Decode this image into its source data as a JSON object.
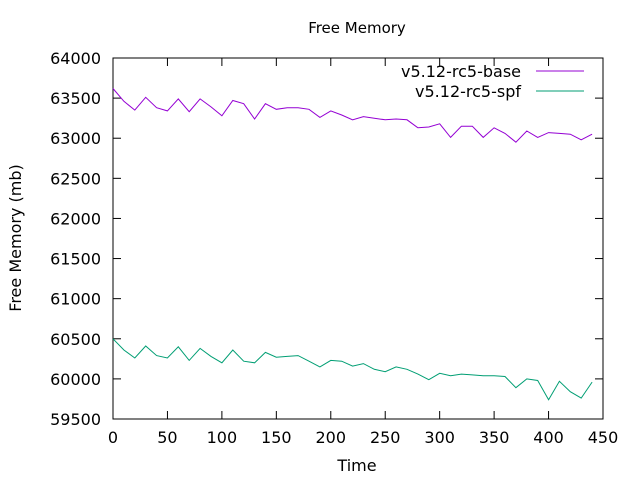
{
  "chart_data": {
    "type": "line",
    "title": "Free Memory",
    "xlabel": "Time",
    "ylabel": "Free Memory (mb)",
    "xlim": [
      0,
      450
    ],
    "ylim": [
      59500,
      64000
    ],
    "xticks": [
      0,
      50,
      100,
      150,
      200,
      250,
      300,
      350,
      400,
      450
    ],
    "yticks": [
      59500,
      60000,
      60500,
      61000,
      61500,
      62000,
      62500,
      63000,
      63500,
      64000
    ],
    "grid": false,
    "legend_position": "top-right",
    "x": [
      0,
      10,
      20,
      30,
      40,
      50,
      60,
      70,
      80,
      90,
      100,
      110,
      120,
      130,
      140,
      150,
      160,
      170,
      180,
      190,
      200,
      210,
      220,
      230,
      240,
      250,
      260,
      270,
      280,
      290,
      300,
      310,
      320,
      330,
      340,
      350,
      360,
      370,
      380,
      390,
      400,
      410,
      420,
      430,
      440
    ],
    "series": [
      {
        "name": "v5.12-rc5-base",
        "color": "#9400d3",
        "values": [
          63620,
          63460,
          63350,
          63510,
          63380,
          63340,
          63490,
          63330,
          63490,
          63390,
          63280,
          63470,
          63430,
          63240,
          63430,
          63360,
          63380,
          63380,
          63360,
          63260,
          63340,
          63290,
          63230,
          63270,
          63250,
          63230,
          63240,
          63230,
          63130,
          63140,
          63180,
          63010,
          63150,
          63150,
          63010,
          63130,
          63060,
          62950,
          63090,
          63010,
          63070,
          63060,
          63050,
          62980,
          63050
        ]
      },
      {
        "name": "v5.12-rc5-spf",
        "color": "#009e73",
        "values": [
          60500,
          60360,
          60260,
          60410,
          60290,
          60260,
          60400,
          60230,
          60380,
          60280,
          60200,
          60360,
          60220,
          60200,
          60330,
          60270,
          60280,
          60290,
          60220,
          60150,
          60230,
          60220,
          60160,
          60190,
          60120,
          60090,
          60150,
          60120,
          60060,
          59990,
          60070,
          60040,
          60060,
          60050,
          60040,
          60040,
          60030,
          59890,
          60000,
          59980,
          59740,
          59970,
          59840,
          59760,
          59960
        ]
      }
    ]
  }
}
